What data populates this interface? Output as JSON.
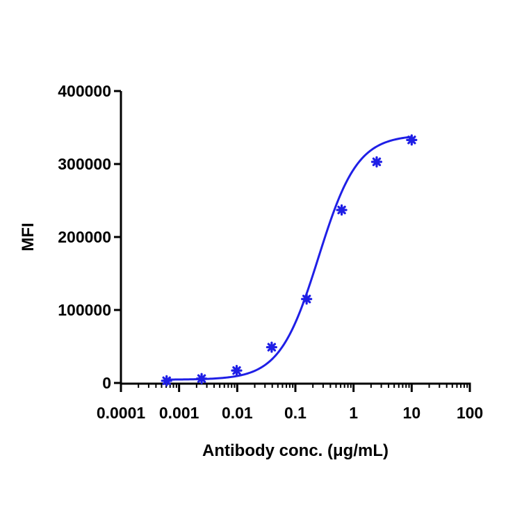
{
  "chart_data": {
    "type": "scatter",
    "title": "",
    "xlabel": "Antibody conc. (μg/mL)",
    "ylabel": "MFI",
    "x_scale": "log",
    "xlim": [
      0.0001,
      100
    ],
    "ylim": [
      0,
      400000
    ],
    "x_tick_labels": [
      "0.0001",
      "0.001",
      "0.01",
      "0.1",
      "1",
      "10",
      "100"
    ],
    "x_tick_values": [
      0.0001,
      0.001,
      0.01,
      0.1,
      1,
      10,
      100
    ],
    "y_tick_labels": [
      "0",
      "100000",
      "200000",
      "300000",
      "400000"
    ],
    "y_tick_values": [
      0,
      100000,
      200000,
      300000,
      400000
    ],
    "grid": false,
    "legend": "none",
    "series": [
      {
        "marker": "asterisk",
        "fit": "four-parameter logistic",
        "x": [
          0.00061,
          0.00244,
          0.00977,
          0.0391,
          0.156,
          0.625,
          2.5,
          10
        ],
        "y": [
          3000,
          6000,
          17000,
          49000,
          115000,
          237000,
          303000,
          333000
        ]
      }
    ],
    "fit_curve": {
      "bottom": 4500,
      "top": 340000,
      "ec50": 0.25,
      "hill": 1.3
    },
    "colors": {
      "series": "#1f1fe6",
      "axis": "#000000"
    }
  }
}
